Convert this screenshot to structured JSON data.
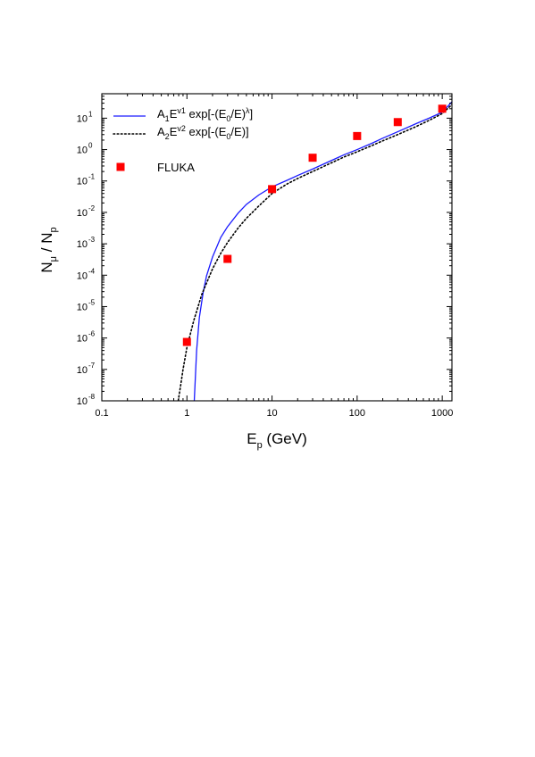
{
  "chart_data": {
    "type": "scatter",
    "xlabel": {
      "main": "E",
      "sub": "p",
      "rest": " (GeV)"
    },
    "ylabel": {
      "a": "N",
      "a_sub": "μ",
      "mid": " / N",
      "b_sub": "p"
    },
    "x_scale": "log",
    "y_scale": "log",
    "xlim": [
      0.1,
      1300
    ],
    "ylim": [
      1e-08,
      60
    ],
    "x_ticks": [
      {
        "value": 0.1,
        "label": "0.1"
      },
      {
        "value": 1,
        "label": "1"
      },
      {
        "value": 10,
        "label": "10"
      },
      {
        "value": 100,
        "label": "100"
      },
      {
        "value": 1000,
        "label": "1000"
      }
    ],
    "y_ticks": [
      {
        "value": 1e-08,
        "base": "10",
        "exp": "-8"
      },
      {
        "value": 1e-07,
        "base": "10",
        "exp": "-7"
      },
      {
        "value": 1e-06,
        "base": "10",
        "exp": "-6"
      },
      {
        "value": 1e-05,
        "base": "10",
        "exp": "-5"
      },
      {
        "value": 0.0001,
        "base": "10",
        "exp": "-4"
      },
      {
        "value": 0.001,
        "base": "10",
        "exp": "-3"
      },
      {
        "value": 0.01,
        "base": "10",
        "exp": "-2"
      },
      {
        "value": 0.1,
        "base": "10",
        "exp": "-1"
      },
      {
        "value": 1,
        "base": "10",
        "exp": "0"
      },
      {
        "value": 10,
        "base": "10",
        "exp": "1"
      }
    ],
    "legend_position": "top-left",
    "series": [
      {
        "name": "A1E^v1 exp[-(E0/E)^λ]",
        "legend": {
          "p1": "A",
          "s1": "1",
          "p2": "E",
          "u1": "v1",
          "p3": " exp[-(E",
          "s2": "0",
          "p4": "/E)",
          "u2": "λ",
          "p5": "]"
        },
        "kind": "line",
        "style": "solid",
        "color": "#1a1aff",
        "points": [
          [
            1.22,
            1e-08
          ],
          [
            1.3,
            4e-07
          ],
          [
            1.4,
            4.5e-06
          ],
          [
            1.55,
            2.8e-05
          ],
          [
            1.7,
            9.5e-05
          ],
          [
            2.0,
            0.00038
          ],
          [
            2.5,
            0.0016
          ],
          [
            3.0,
            0.0035
          ],
          [
            4.0,
            0.0095
          ],
          [
            5.0,
            0.018
          ],
          [
            7.0,
            0.036
          ],
          [
            10,
            0.065
          ],
          [
            15,
            0.105
          ],
          [
            20,
            0.15
          ],
          [
            30,
            0.24
          ],
          [
            50,
            0.45
          ],
          [
            70,
            0.68
          ],
          [
            100,
            1.0
          ],
          [
            150,
            1.6
          ],
          [
            200,
            2.3
          ],
          [
            300,
            3.7
          ],
          [
            500,
            6.8
          ],
          [
            700,
            10.0
          ],
          [
            1000,
            15.5
          ],
          [
            1300,
            33
          ]
        ]
      },
      {
        "name": "A2E^v2 exp[-(E0/E)]",
        "legend": {
          "p1": "A",
          "s1": "2",
          "p2": "E",
          "u1": "v2",
          "p3": " exp[-(E",
          "s2": "0",
          "p4": "/E)]",
          "u2": "",
          "p5": ""
        },
        "kind": "line",
        "style": "dotted",
        "color": "#000000",
        "points": [
          [
            0.79,
            1e-08
          ],
          [
            0.85,
            3.5e-08
          ],
          [
            0.9,
            1e-07
          ],
          [
            1.0,
            5e-07
          ],
          [
            1.2,
            3.5e-06
          ],
          [
            1.5,
            2.5e-05
          ],
          [
            2.0,
            0.00016
          ],
          [
            2.5,
            0.0005
          ],
          [
            3.0,
            0.0011
          ],
          [
            4.0,
            0.0032
          ],
          [
            5.0,
            0.0065
          ],
          [
            7.0,
            0.016
          ],
          [
            10,
            0.04
          ],
          [
            15,
            0.08
          ],
          [
            20,
            0.12
          ],
          [
            30,
            0.2
          ],
          [
            50,
            0.38
          ],
          [
            70,
            0.58
          ],
          [
            100,
            0.85
          ],
          [
            150,
            1.35
          ],
          [
            200,
            1.9
          ],
          [
            300,
            3.0
          ],
          [
            500,
            5.5
          ],
          [
            700,
            8.5
          ],
          [
            1000,
            14
          ],
          [
            1300,
            27
          ]
        ]
      },
      {
        "name": "FLUKA",
        "kind": "markers",
        "marker": "square",
        "color": "#ff0000",
        "points": [
          [
            1,
            7.5e-07
          ],
          [
            3,
            0.00033
          ],
          [
            10,
            0.055
          ],
          [
            30,
            0.55
          ],
          [
            100,
            2.7
          ],
          [
            300,
            7.5
          ],
          [
            1000,
            20
          ]
        ]
      }
    ]
  }
}
